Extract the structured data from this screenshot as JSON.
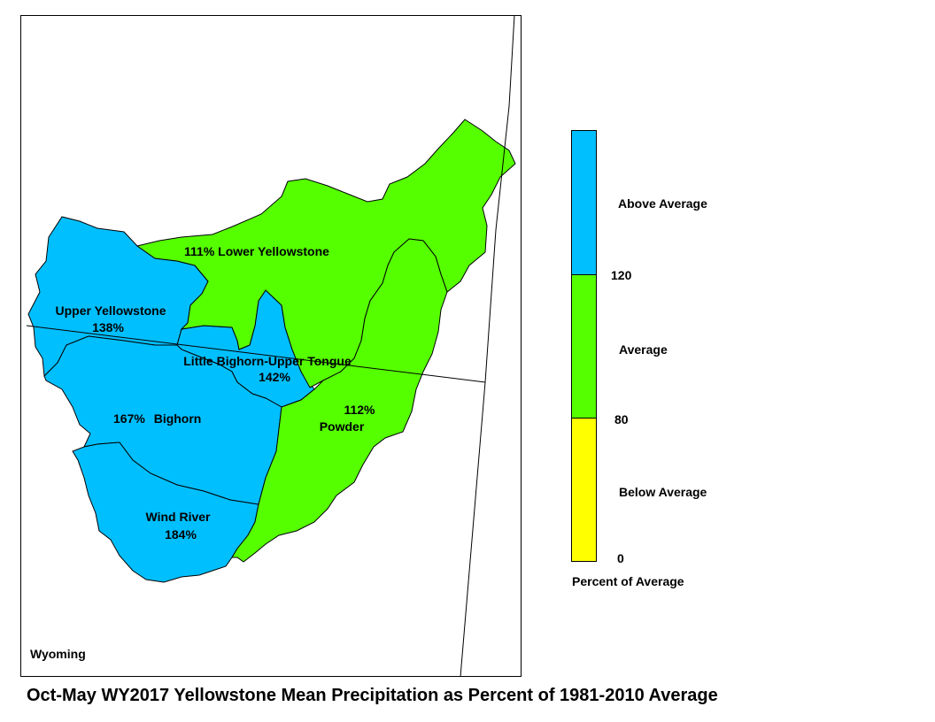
{
  "title": "Oct-May WY2017 Yellowstone Mean Precipitation as Percent of 1981-2010 Average",
  "state_label": "Wyoming",
  "basins": [
    {
      "name": "Lower Yellowstone",
      "percent": "111%",
      "category": "Average"
    },
    {
      "name": "Upper Yellowstone",
      "percent": "138%",
      "category": "Above Average"
    },
    {
      "name": "Little Bighorn-Upper Tongue",
      "percent": "142%",
      "category": "Above Average"
    },
    {
      "name": "Bighorn",
      "percent": "167%",
      "category": "Above Average"
    },
    {
      "name": "Powder",
      "percent": "112%",
      "category": "Average"
    },
    {
      "name": "Wind River",
      "percent": "184%",
      "category": "Above Average"
    }
  ],
  "legend": {
    "title": "Percent of Average",
    "classes": [
      {
        "label": "Above Average",
        "color": "#00BFFF"
      },
      {
        "label": "Average",
        "color": "#55FF00"
      },
      {
        "label": "Below Average",
        "color": "#FFFF00"
      }
    ],
    "breaks": [
      "120",
      "80",
      "0"
    ]
  },
  "colors": {
    "above": "#00BFFF",
    "average": "#55FF00",
    "below": "#FFFF00",
    "boundary": "#000000"
  }
}
